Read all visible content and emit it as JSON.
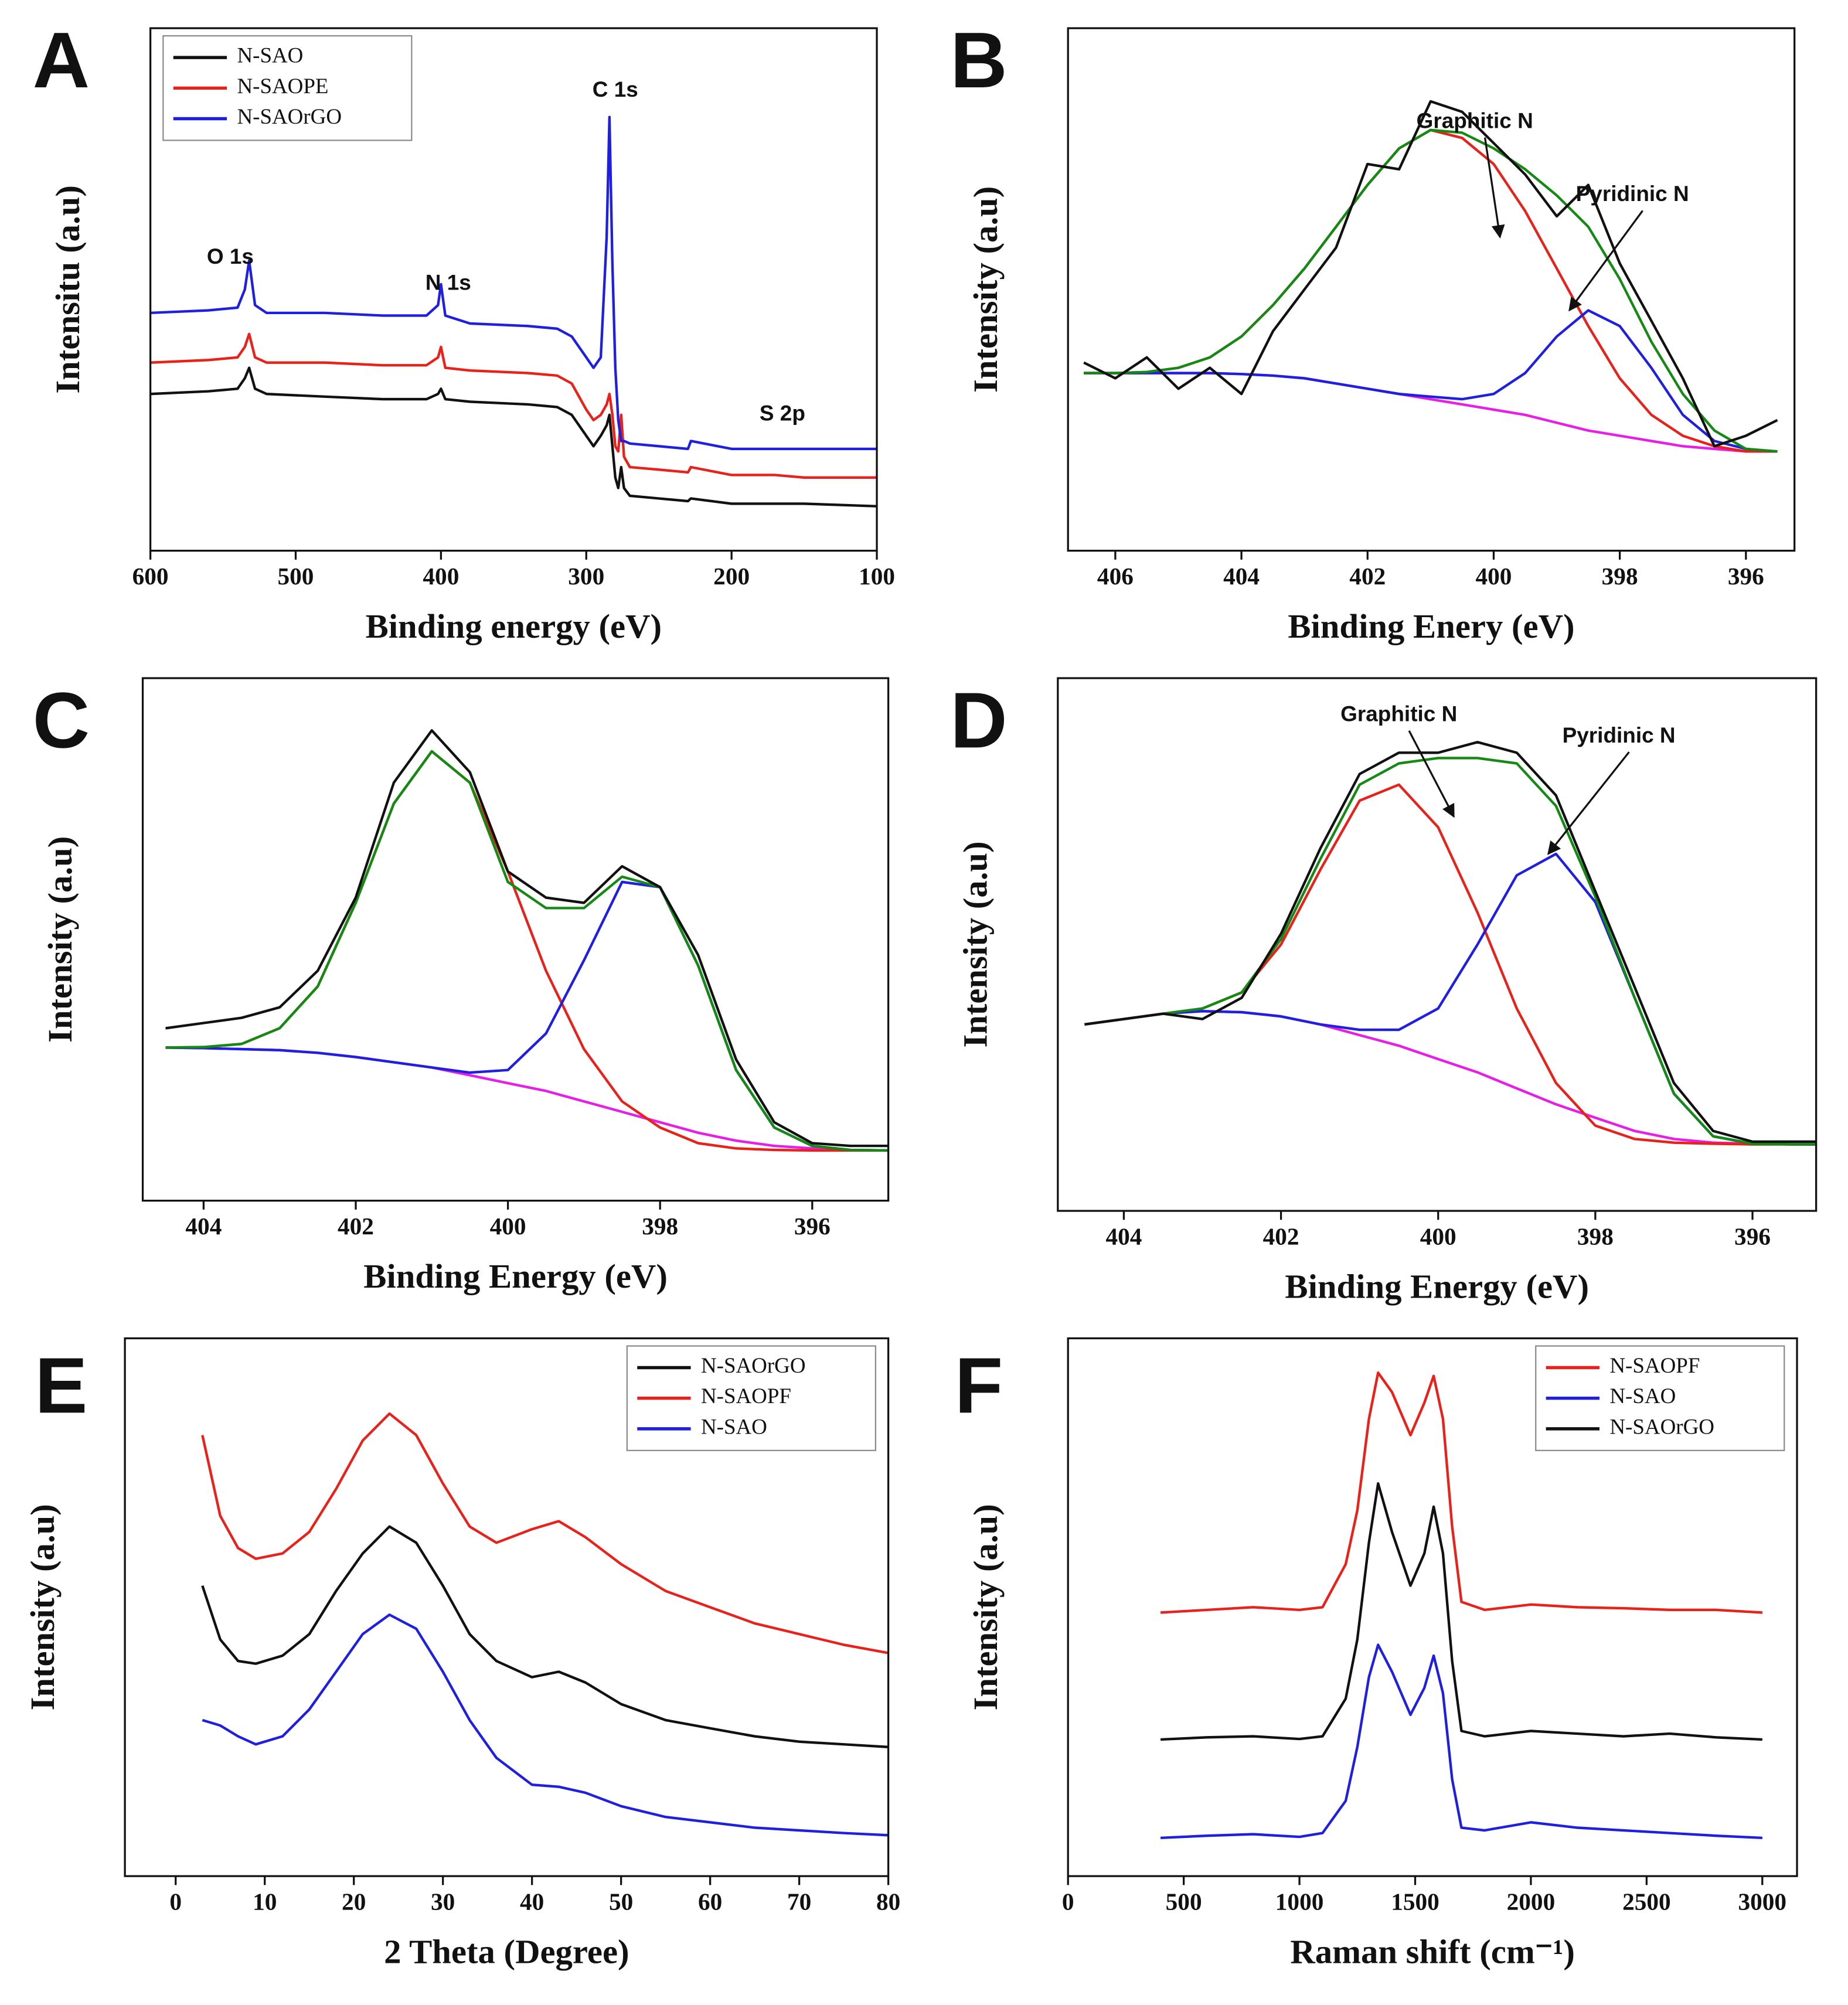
{
  "chart_data": [
    {
      "type": "line",
      "label": "A",
      "x_label": "Binding energy (eV)",
      "y_label": "Intensitu (a.u)",
      "xlim": [
        600,
        100
      ],
      "xticks": [
        600,
        500,
        400,
        300,
        200,
        100
      ],
      "ylim": [
        0,
        100
      ],
      "legend": "upper left",
      "x": [
        600,
        560,
        540,
        535,
        532,
        528,
        520,
        480,
        440,
        410,
        402,
        400,
        397,
        380,
        340,
        320,
        310,
        300,
        295,
        290,
        286,
        284,
        282,
        280,
        278,
        276,
        274,
        270,
        250,
        230,
        228,
        200,
        170,
        150,
        100
      ],
      "series": [
        {
          "name": "N-SAO",
          "color": "#111111",
          "values": [
            30,
            30.5,
            31,
            33,
            35,
            31,
            30,
            29.5,
            29,
            29,
            30,
            31,
            29,
            28.5,
            28,
            27.5,
            26,
            22,
            20,
            22,
            24,
            26,
            20,
            14,
            12,
            16,
            12,
            10.5,
            10,
            9.5,
            10,
            9,
            9,
            9,
            8.5
          ]
        },
        {
          "name": "N-SAOPE",
          "color": "#e8211a",
          "values": [
            36,
            36.5,
            37,
            39,
            41.5,
            37,
            36,
            36,
            35.5,
            35.5,
            37,
            39,
            35,
            34.5,
            34,
            33.5,
            32,
            27,
            25,
            26,
            28,
            30,
            26,
            20,
            19,
            26,
            18,
            16,
            15.5,
            15,
            16,
            14.5,
            14.5,
            14,
            14
          ]
        },
        {
          "name": "N-SAOrGO",
          "color": "#1f1fe0",
          "values": [
            45.5,
            46,
            46.5,
            50,
            55.5,
            47,
            45.5,
            45.5,
            45,
            45,
            47,
            51,
            45,
            43.5,
            43,
            42.5,
            41,
            37,
            35,
            37,
            60,
            83,
            55,
            35,
            25,
            21,
            21,
            20.5,
            20,
            19.5,
            21,
            19.5,
            19.5,
            19.5,
            19.5
          ]
        }
      ],
      "annotations": [
        {
          "text": "O 1s",
          "x": 545,
          "y": 56
        },
        {
          "text": "N 1s",
          "x": 395,
          "y": 51
        },
        {
          "text": "C 1s",
          "x": 280,
          "y": 88
        },
        {
          "text": "S 2p",
          "x": 165,
          "y": 26
        }
      ]
    },
    {
      "type": "line",
      "label": "B",
      "x_label": "Binding Enery (eV)",
      "y_label": "Intensity (a.u)",
      "xlim": [
        406.75,
        395.23
      ],
      "xticks": [
        406,
        404,
        402,
        400,
        398,
        396
      ],
      "ylim": [
        0,
        100
      ],
      "x": [
        406.5,
        406,
        405.5,
        405,
        404.5,
        404,
        403.5,
        403,
        402.5,
        402,
        401.5,
        401,
        400.5,
        400,
        399.5,
        399,
        398.5,
        398,
        397.5,
        397,
        396.5,
        396,
        395.5
      ],
      "series": [
        {
          "color": "#e61ee6",
          "values": [
            34,
            34,
            34,
            34,
            34,
            33.8,
            33.5,
            33,
            32,
            31,
            30,
            29,
            28,
            27,
            26,
            24.5,
            23,
            22,
            21,
            20,
            19.5,
            19,
            19
          ]
        },
        {
          "color": "#e8211a",
          "values": [
            34,
            34,
            34.2,
            35,
            37,
            41,
            47,
            54,
            62,
            70,
            77,
            80.5,
            79,
            74,
            65,
            54,
            43,
            33,
            26,
            22,
            20,
            19,
            19
          ]
        },
        {
          "color": "#1f1fe0",
          "values": [
            34,
            34,
            34,
            34,
            34,
            33.8,
            33.5,
            33,
            32,
            31,
            30,
            29.5,
            29,
            30,
            34,
            41,
            46,
            43,
            35,
            26,
            21,
            19.5,
            19
          ]
        },
        {
          "color": "#148a14",
          "values": [
            34,
            34,
            34.2,
            35,
            37,
            41,
            47,
            54,
            62,
            70,
            77,
            80.5,
            80,
            77,
            73,
            68,
            62,
            52,
            40,
            30,
            23,
            19.5,
            19
          ]
        },
        {
          "color": "#111111",
          "values": [
            36,
            33,
            37,
            31,
            35,
            30,
            42,
            50,
            58,
            74,
            73,
            86,
            84,
            78,
            72,
            64,
            70,
            55,
            44,
            33,
            20,
            22,
            25
          ]
        }
      ],
      "annotations": [
        {
          "text": "Graphitic N",
          "x": 400.3,
          "y": 82,
          "arrow_to": [
            399.9,
            60
          ]
        },
        {
          "text": "Pyridinic N",
          "x": 397.8,
          "y": 68,
          "arrow_to": [
            398.8,
            46
          ]
        }
      ]
    },
    {
      "type": "line",
      "label": "C",
      "x_label": "Binding Energy (eV)",
      "y_label": "Intensity (a.u)",
      "xlim": [
        404.8,
        395
      ],
      "xticks": [
        404,
        402,
        400,
        398,
        396
      ],
      "ylim": [
        0,
        100
      ],
      "x": [
        404.5,
        404,
        403.5,
        403,
        402.5,
        402,
        401.5,
        401,
        400.5,
        400,
        399.5,
        399,
        398.5,
        398,
        397.5,
        397,
        396.5,
        396,
        395.5,
        395
      ],
      "series": [
        {
          "color": "#e61ee6",
          "values": [
            29.3,
            29.2,
            29,
            28.8,
            28.3,
            27.5,
            26.5,
            25.5,
            24,
            22.5,
            21,
            19,
            17,
            15,
            13,
            11.5,
            10.5,
            10,
            9.7,
            9.6
          ]
        },
        {
          "color": "#e8211a",
          "values": [
            29.3,
            29.4,
            30,
            33,
            41,
            57,
            76,
            86,
            80,
            63,
            44,
            29,
            19,
            14,
            11,
            10,
            9.7,
            9.6,
            9.6,
            9.6
          ]
        },
        {
          "color": "#1f1fe0",
          "values": [
            29.3,
            29.2,
            29,
            28.8,
            28.3,
            27.5,
            26.5,
            25.5,
            24.5,
            25,
            32,
            46,
            61,
            60,
            45,
            25,
            14,
            10.5,
            9.7,
            9.6
          ]
        },
        {
          "color": "#148a14",
          "values": [
            29.3,
            29.4,
            30,
            33,
            41,
            57,
            76,
            86,
            80,
            61,
            56,
            56,
            62,
            60,
            45,
            25,
            14,
            10.5,
            9.7,
            9.6
          ]
        },
        {
          "color": "#111111",
          "values": [
            33,
            34,
            35,
            37,
            44,
            58,
            80,
            90,
            82,
            63,
            58,
            57,
            64,
            60,
            47,
            27,
            15,
            11,
            10.5,
            10.5
          ]
        }
      ]
    },
    {
      "type": "line",
      "label": "D",
      "x_label": "Binding Energy (eV)",
      "y_label": "Intensity (a.u)",
      "xlim": [
        404.84,
        395.19
      ],
      "xticks": [
        404,
        402,
        400,
        398,
        396
      ],
      "ylim": [
        0,
        100
      ],
      "x": [
        404.5,
        404,
        403.5,
        403,
        402.5,
        402,
        401.5,
        401,
        400.5,
        400,
        399.5,
        399,
        398.5,
        398,
        397.5,
        397,
        396.5,
        396,
        395.5,
        395
      ],
      "series": [
        {
          "color": "#e61ee6",
          "values": [
            35,
            36,
            37,
            37.5,
            37.3,
            36.5,
            35,
            33,
            31,
            28.5,
            26,
            23,
            20,
            17.5,
            15,
            13.5,
            12.8,
            12.6,
            12.5,
            12.5
          ]
        },
        {
          "color": "#e8211a",
          "values": [
            35,
            36,
            37,
            38,
            41,
            50,
            64,
            77,
            80,
            72,
            56,
            38,
            24,
            16,
            13.5,
            12.8,
            12.6,
            12.5,
            12.5,
            12.5
          ]
        },
        {
          "color": "#1f1fe0",
          "values": [
            35,
            36,
            37,
            37.5,
            37.3,
            36.5,
            35,
            34,
            34,
            38,
            50,
            63,
            67,
            58,
            40,
            22,
            14,
            12.6,
            12.5,
            12.5
          ]
        },
        {
          "color": "#148a14",
          "values": [
            35,
            36,
            37,
            38,
            41,
            51,
            66,
            80,
            84,
            85,
            85,
            84,
            76,
            59,
            40,
            22,
            14,
            12.6,
            12.5,
            12.5
          ]
        },
        {
          "color": "#111111",
          "values": [
            35,
            36,
            37,
            36,
            40,
            52,
            68,
            82,
            86,
            86,
            88,
            86,
            78,
            60,
            42,
            24,
            15,
            13,
            13,
            13
          ]
        }
      ],
      "annotations": [
        {
          "text": "Graphitic N",
          "x": 400.5,
          "y": 93,
          "arrow_to": [
            399.8,
            74
          ]
        },
        {
          "text": "Pyridinic N",
          "x": 397.7,
          "y": 89,
          "arrow_to": [
            398.6,
            67
          ]
        }
      ]
    },
    {
      "type": "line",
      "label": "E",
      "x_label": "2 Theta (Degree)",
      "y_label": "Intensity (a.u)",
      "xlim": [
        -5.7,
        80
      ],
      "xticks": [
        0,
        10,
        20,
        30,
        40,
        50,
        60,
        70,
        80
      ],
      "ylim": [
        0,
        100
      ],
      "legend": "upper right",
      "x": [
        3,
        5,
        7,
        9,
        12,
        15,
        18,
        21,
        24,
        27,
        30,
        33,
        36,
        40,
        43,
        46,
        50,
        55,
        60,
        65,
        70,
        75,
        80
      ],
      "series": [
        {
          "name": "N-SAOrGO",
          "color": "#111111",
          "values": [
            54,
            44,
            40,
            39.5,
            41,
            45,
            53,
            60,
            65,
            62,
            54,
            45,
            40,
            37,
            38,
            36,
            32,
            29,
            27.5,
            26,
            25,
            24.5,
            24
          ]
        },
        {
          "name": "N-SAOPF",
          "color": "#e8211a",
          "values": [
            82,
            67,
            61,
            59,
            60,
            64,
            72,
            81,
            86,
            82,
            73,
            65,
            62,
            64.5,
            66,
            63,
            58,
            53,
            50,
            47,
            45,
            43,
            41.5
          ]
        },
        {
          "name": "N-SAO",
          "color": "#1f1fe0",
          "values": [
            29,
            28,
            26,
            24.5,
            26,
            31,
            38,
            45,
            48.6,
            46,
            38,
            29,
            22,
            17,
            16.6,
            15.5,
            13,
            11,
            10,
            9,
            8.5,
            8,
            7.6
          ]
        }
      ]
    },
    {
      "type": "line",
      "label": "F",
      "x_label": "Raman shift (cm⁻¹)",
      "y_label": "Intensity (a.u)",
      "xlim": [
        0,
        3150
      ],
      "xticks": [
        0,
        500,
        1000,
        1500,
        2000,
        2500,
        3000
      ],
      "ylim": [
        0,
        100
      ],
      "legend": "upper right",
      "x": [
        400,
        600,
        800,
        1000,
        1100,
        1200,
        1250,
        1300,
        1340,
        1400,
        1480,
        1540,
        1580,
        1620,
        1660,
        1700,
        1800,
        2000,
        2200,
        2400,
        2600,
        2800,
        3000
      ],
      "series": [
        {
          "name": "N-SAOPF",
          "color": "#e8211a",
          "values": [
            49,
            49.5,
            50,
            49.5,
            50,
            58,
            68,
            85,
            93.6,
            90,
            82,
            88,
            93,
            85,
            65,
            51,
            49.5,
            50.5,
            50,
            49.8,
            49.5,
            49.5,
            49
          ]
        },
        {
          "name": "N-SAO",
          "color": "#1f1fe0",
          "values": [
            7.1,
            7.5,
            7.8,
            7.3,
            8,
            14,
            24,
            37,
            43,
            38,
            30,
            35,
            41,
            34,
            18,
            9,
            8.5,
            10,
            9,
            8.5,
            8,
            7.5,
            7.1
          ]
        },
        {
          "name": "N-SAOrGO",
          "color": "#111111",
          "values": [
            25.4,
            25.8,
            26,
            25.5,
            26,
            33,
            44,
            62,
            73,
            64,
            54,
            60,
            68.7,
            60,
            40,
            27,
            26,
            27,
            26.5,
            26,
            26.5,
            25.8,
            25.4
          ]
        }
      ]
    }
  ]
}
